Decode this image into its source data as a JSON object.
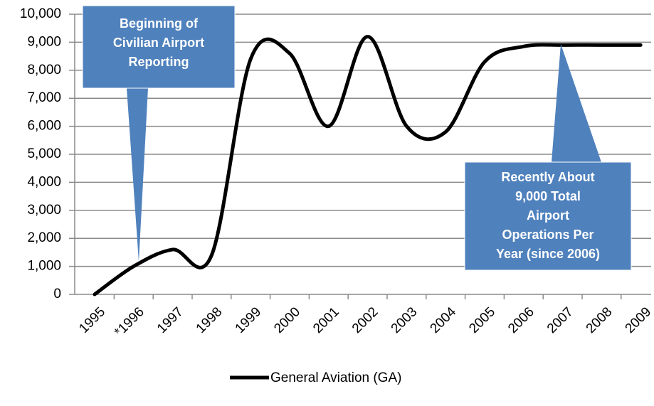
{
  "chart_data": {
    "type": "line",
    "categories": [
      "1995",
      "*1996",
      "1997",
      "1998",
      "1999",
      "2000",
      "2001",
      "2002",
      "2003",
      "2004",
      "2005",
      "2006",
      "2007",
      "2008",
      "2009"
    ],
    "series": [
      {
        "name": "General Aviation (GA)",
        "color": "#000000",
        "values": [
          0,
          1000,
          1600,
          1400,
          8400,
          8600,
          6000,
          9200,
          6000,
          5800,
          8300,
          8850,
          8900,
          8900,
          8900
        ]
      }
    ],
    "ylim": [
      0,
      10000
    ],
    "yticks": [
      0,
      {
        "value": 1000,
        "label": "1,000"
      },
      {
        "value": 2000,
        "label": "2,000"
      },
      {
        "value": 3000,
        "label": "3,000"
      },
      {
        "value": 4000,
        "label": "4,000"
      },
      {
        "value": 5000,
        "label": "5,000"
      },
      {
        "value": 6000,
        "label": "6,000"
      },
      {
        "value": 7000,
        "label": "7,000"
      },
      {
        "value": 8000,
        "label": "8,000"
      },
      {
        "value": 9000,
        "label": "9,000"
      },
      {
        "value": 10000,
        "label": "10,000"
      }
    ],
    "grid": true,
    "legend": "bottom",
    "annotations": [
      {
        "lines": [
          "Beginning of",
          "Civilian Airport",
          "Reporting"
        ],
        "color": "#4f81bd"
      },
      {
        "lines": [
          "Recently About",
          "9,000 Total",
          "Airport",
          "Operations Per",
          "Year (since 2006)"
        ],
        "color": "#4f81bd"
      }
    ]
  }
}
